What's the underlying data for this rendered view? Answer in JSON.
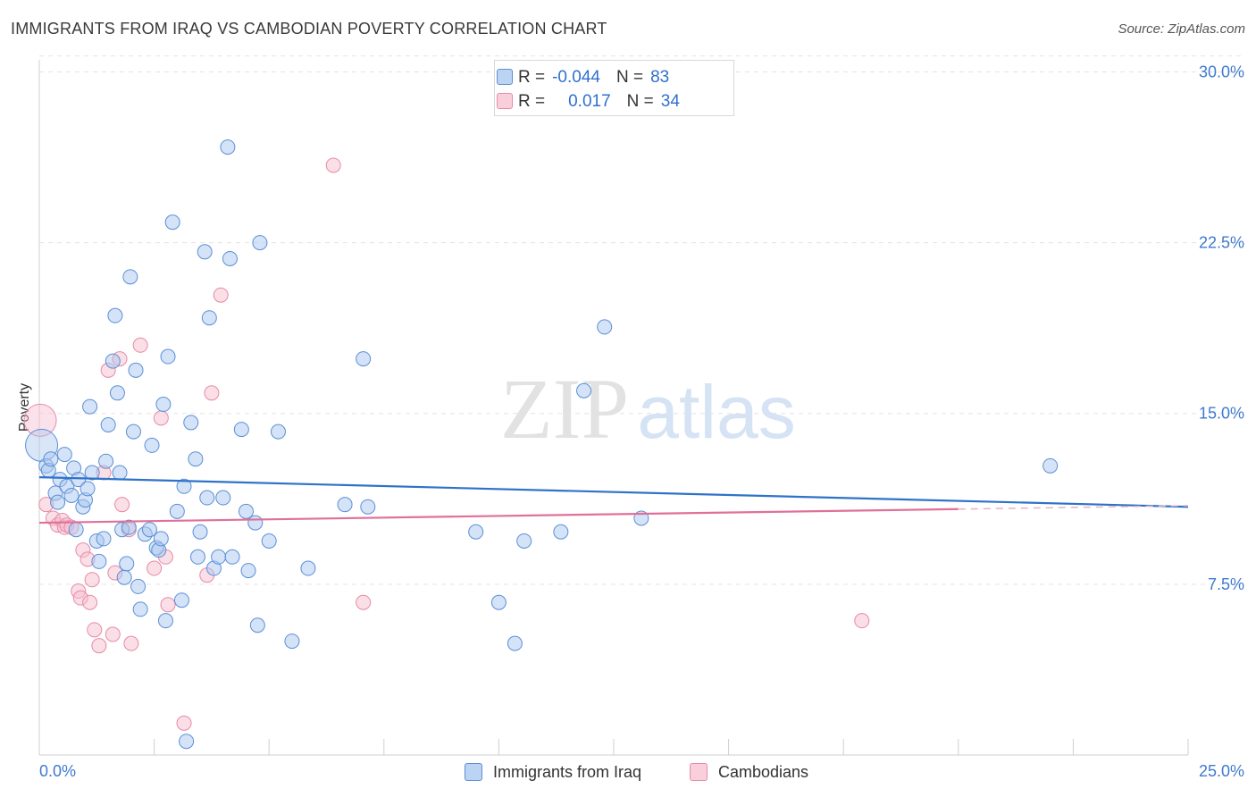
{
  "title": "IMMIGRANTS FROM IRAQ VS CAMBODIAN POVERTY CORRELATION CHART",
  "source": "Source: ZipAtlas.com",
  "watermark": {
    "zip": "ZIP",
    "atlas": "atlas"
  },
  "legend": {
    "rows": [
      {
        "r_label": "R =",
        "r_value": "-0.044",
        "n_label": "N =",
        "n_value": "83"
      },
      {
        "r_label": "R =",
        "r_value": "0.017",
        "n_label": "N =",
        "n_value": "34"
      }
    ]
  },
  "bottom_legend": {
    "series1": "Immigrants from Iraq",
    "series2": "Cambodians"
  },
  "colors": {
    "blue_fill": "#aac8ef",
    "blue_stroke": "#5b8fd6",
    "blue_line": "#2f72c9",
    "pink_fill": "#f6bfd0",
    "pink_stroke": "#e88aa8",
    "pink_line": "#e07099",
    "axis_text": "#3f7ad0",
    "grid": "#e3e3e3"
  },
  "chart_data": {
    "type": "scatter",
    "title": "IMMIGRANTS FROM IRAQ VS CAMBODIAN POVERTY CORRELATION CHART",
    "xlabel": "",
    "ylabel": "Poverty",
    "xlim": [
      0,
      25
    ],
    "ylim": [
      0,
      31
    ],
    "x_ticks_labeled": [
      "0.0%",
      "25.0%"
    ],
    "y_ticks": [
      7.5,
      15.0,
      22.5,
      30.0
    ],
    "y_tick_labels": [
      "7.5%",
      "15.0%",
      "22.5%",
      "30.0%"
    ],
    "grid": true,
    "series": [
      {
        "name": "Immigrants from Iraq",
        "r": -0.044,
        "n": 83,
        "trend": {
          "x": [
            0,
            25
          ],
          "y": [
            12.2,
            10.9
          ]
        },
        "points": [
          {
            "x": 0.05,
            "y": 13.6,
            "big": true
          },
          {
            "x": 0.15,
            "y": 12.7
          },
          {
            "x": 0.2,
            "y": 12.5
          },
          {
            "x": 0.25,
            "y": 13.0
          },
          {
            "x": 0.35,
            "y": 11.5
          },
          {
            "x": 0.4,
            "y": 11.1
          },
          {
            "x": 0.45,
            "y": 12.1
          },
          {
            "x": 0.55,
            "y": 13.2
          },
          {
            "x": 0.6,
            "y": 11.8
          },
          {
            "x": 0.7,
            "y": 11.4
          },
          {
            "x": 0.75,
            "y": 12.6
          },
          {
            "x": 0.8,
            "y": 9.9
          },
          {
            "x": 0.85,
            "y": 12.1
          },
          {
            "x": 0.95,
            "y": 10.9
          },
          {
            "x": 1.0,
            "y": 11.2
          },
          {
            "x": 1.05,
            "y": 11.7
          },
          {
            "x": 1.1,
            "y": 15.3
          },
          {
            "x": 1.15,
            "y": 12.4
          },
          {
            "x": 1.25,
            "y": 9.4
          },
          {
            "x": 1.3,
            "y": 8.5
          },
          {
            "x": 1.4,
            "y": 9.5
          },
          {
            "x": 1.45,
            "y": 12.9
          },
          {
            "x": 1.5,
            "y": 14.5
          },
          {
            "x": 1.6,
            "y": 17.3
          },
          {
            "x": 1.65,
            "y": 19.3
          },
          {
            "x": 1.7,
            "y": 15.9
          },
          {
            "x": 1.75,
            "y": 12.4
          },
          {
            "x": 1.8,
            "y": 9.9
          },
          {
            "x": 1.85,
            "y": 7.8
          },
          {
            "x": 1.9,
            "y": 8.4
          },
          {
            "x": 1.95,
            "y": 10.0
          },
          {
            "x": 1.98,
            "y": 21.0
          },
          {
            "x": 2.05,
            "y": 14.2
          },
          {
            "x": 2.1,
            "y": 16.9
          },
          {
            "x": 2.15,
            "y": 7.4
          },
          {
            "x": 2.2,
            "y": 6.4
          },
          {
            "x": 2.3,
            "y": 9.7
          },
          {
            "x": 2.4,
            "y": 9.9
          },
          {
            "x": 2.45,
            "y": 13.6
          },
          {
            "x": 2.55,
            "y": 9.1
          },
          {
            "x": 2.6,
            "y": 9.0
          },
          {
            "x": 2.65,
            "y": 9.5
          },
          {
            "x": 2.7,
            "y": 15.4
          },
          {
            "x": 2.75,
            "y": 5.9
          },
          {
            "x": 2.8,
            "y": 17.5
          },
          {
            "x": 2.9,
            "y": 23.4
          },
          {
            "x": 3.0,
            "y": 10.7
          },
          {
            "x": 3.1,
            "y": 6.8
          },
          {
            "x": 3.15,
            "y": 11.8
          },
          {
            "x": 3.2,
            "y": 0.6
          },
          {
            "x": 3.3,
            "y": 14.6
          },
          {
            "x": 3.4,
            "y": 13.0
          },
          {
            "x": 3.45,
            "y": 8.7
          },
          {
            "x": 3.5,
            "y": 9.8
          },
          {
            "x": 3.6,
            "y": 22.1
          },
          {
            "x": 3.65,
            "y": 11.3
          },
          {
            "x": 3.7,
            "y": 19.2
          },
          {
            "x": 3.8,
            "y": 8.2
          },
          {
            "x": 3.9,
            "y": 8.7
          },
          {
            "x": 4.0,
            "y": 11.3
          },
          {
            "x": 4.1,
            "y": 26.7
          },
          {
            "x": 4.15,
            "y": 21.8
          },
          {
            "x": 4.2,
            "y": 8.7
          },
          {
            "x": 4.4,
            "y": 14.3
          },
          {
            "x": 4.5,
            "y": 10.7
          },
          {
            "x": 4.55,
            "y": 8.1
          },
          {
            "x": 4.7,
            "y": 10.2
          },
          {
            "x": 4.75,
            "y": 5.7
          },
          {
            "x": 4.8,
            "y": 22.5
          },
          {
            "x": 5.0,
            "y": 9.4
          },
          {
            "x": 5.2,
            "y": 14.2
          },
          {
            "x": 5.5,
            "y": 5.0
          },
          {
            "x": 5.85,
            "y": 8.2
          },
          {
            "x": 6.65,
            "y": 11.0
          },
          {
            "x": 7.05,
            "y": 17.4
          },
          {
            "x": 7.15,
            "y": 10.9
          },
          {
            "x": 9.5,
            "y": 9.8
          },
          {
            "x": 10.0,
            "y": 6.7
          },
          {
            "x": 10.35,
            "y": 4.9
          },
          {
            "x": 10.55,
            "y": 9.4
          },
          {
            "x": 11.35,
            "y": 9.8
          },
          {
            "x": 11.85,
            "y": 16.0
          },
          {
            "x": 12.3,
            "y": 18.8
          },
          {
            "x": 13.1,
            "y": 10.4
          },
          {
            "x": 22.0,
            "y": 12.7
          }
        ]
      },
      {
        "name": "Cambodians",
        "r": 0.017,
        "n": 34,
        "trend": {
          "x": [
            0,
            20
          ],
          "y": [
            10.2,
            10.8
          ],
          "dashed_to": 25
        },
        "points": [
          {
            "x": 0.02,
            "y": 14.7,
            "big": true
          },
          {
            "x": 0.15,
            "y": 11.0
          },
          {
            "x": 0.3,
            "y": 10.4
          },
          {
            "x": 0.4,
            "y": 10.1
          },
          {
            "x": 0.5,
            "y": 10.3
          },
          {
            "x": 0.55,
            "y": 10.0
          },
          {
            "x": 0.6,
            "y": 10.1
          },
          {
            "x": 0.7,
            "y": 10.0
          },
          {
            "x": 0.85,
            "y": 7.2
          },
          {
            "x": 0.9,
            "y": 6.9
          },
          {
            "x": 0.95,
            "y": 9.0
          },
          {
            "x": 1.05,
            "y": 8.6
          },
          {
            "x": 1.1,
            "y": 6.7
          },
          {
            "x": 1.15,
            "y": 7.7
          },
          {
            "x": 1.2,
            "y": 5.5
          },
          {
            "x": 1.3,
            "y": 4.8
          },
          {
            "x": 1.4,
            "y": 12.4
          },
          {
            "x": 1.5,
            "y": 16.9
          },
          {
            "x": 1.6,
            "y": 5.3
          },
          {
            "x": 1.65,
            "y": 8.0
          },
          {
            "x": 1.75,
            "y": 17.4
          },
          {
            "x": 1.8,
            "y": 11.0
          },
          {
            "x": 1.95,
            "y": 9.9
          },
          {
            "x": 2.0,
            "y": 4.9
          },
          {
            "x": 2.2,
            "y": 18.0
          },
          {
            "x": 2.5,
            "y": 8.2
          },
          {
            "x": 2.65,
            "y": 14.8
          },
          {
            "x": 2.75,
            "y": 8.7
          },
          {
            "x": 2.8,
            "y": 6.6
          },
          {
            "x": 3.15,
            "y": 1.4
          },
          {
            "x": 3.65,
            "y": 7.9
          },
          {
            "x": 3.75,
            "y": 15.9
          },
          {
            "x": 3.95,
            "y": 20.2
          },
          {
            "x": 6.4,
            "y": 25.9
          },
          {
            "x": 7.05,
            "y": 6.7
          },
          {
            "x": 17.9,
            "y": 5.9
          }
        ]
      }
    ]
  }
}
